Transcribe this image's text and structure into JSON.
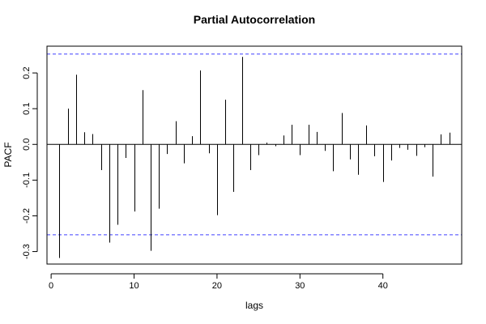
{
  "chart_data": {
    "type": "bar",
    "title": "Partial Autocorrelation",
    "xlabel": "lags",
    "ylabel": "PACF",
    "xlim": [
      -0.5,
      49.5
    ],
    "ylim": [
      -0.335,
      0.275
    ],
    "x_ticks": [
      0,
      10,
      20,
      30,
      40
    ],
    "x_tick_labels": [
      "0",
      "10",
      "20",
      "30",
      "40"
    ],
    "y_ticks": [
      -0.3,
      -0.2,
      -0.1,
      0.0,
      0.1,
      0.2
    ],
    "y_tick_labels": [
      "-0.3",
      "-0.2",
      "-0.1",
      "0.0",
      "0.1",
      "0.2"
    ],
    "confidence_bound": 0.253,
    "confidence_color": "#4040ff",
    "zero_line": true,
    "grid": false,
    "lags": [
      1,
      2,
      3,
      4,
      5,
      6,
      7,
      8,
      9,
      10,
      11,
      12,
      13,
      14,
      15,
      16,
      17,
      18,
      19,
      20,
      21,
      22,
      23,
      24,
      25,
      26,
      27,
      28,
      29,
      30,
      31,
      32,
      33,
      34,
      35,
      36,
      37,
      38,
      39,
      40,
      41,
      42,
      43,
      44,
      45,
      46,
      47,
      48
    ],
    "values": [
      -0.318,
      0.1,
      0.195,
      0.034,
      0.029,
      -0.072,
      -0.275,
      -0.225,
      -0.038,
      -0.188,
      0.152,
      -0.298,
      -0.18,
      -0.027,
      0.065,
      -0.053,
      0.023,
      0.207,
      -0.025,
      -0.198,
      0.125,
      -0.133,
      0.245,
      -0.072,
      -0.03,
      0.005,
      -0.005,
      0.025,
      0.055,
      -0.03,
      0.055,
      0.035,
      -0.018,
      -0.075,
      0.088,
      -0.042,
      -0.085,
      0.053,
      -0.033,
      -0.105,
      -0.045,
      -0.01,
      -0.015,
      -0.032,
      -0.008,
      -0.09,
      0.028,
      0.033
    ]
  }
}
